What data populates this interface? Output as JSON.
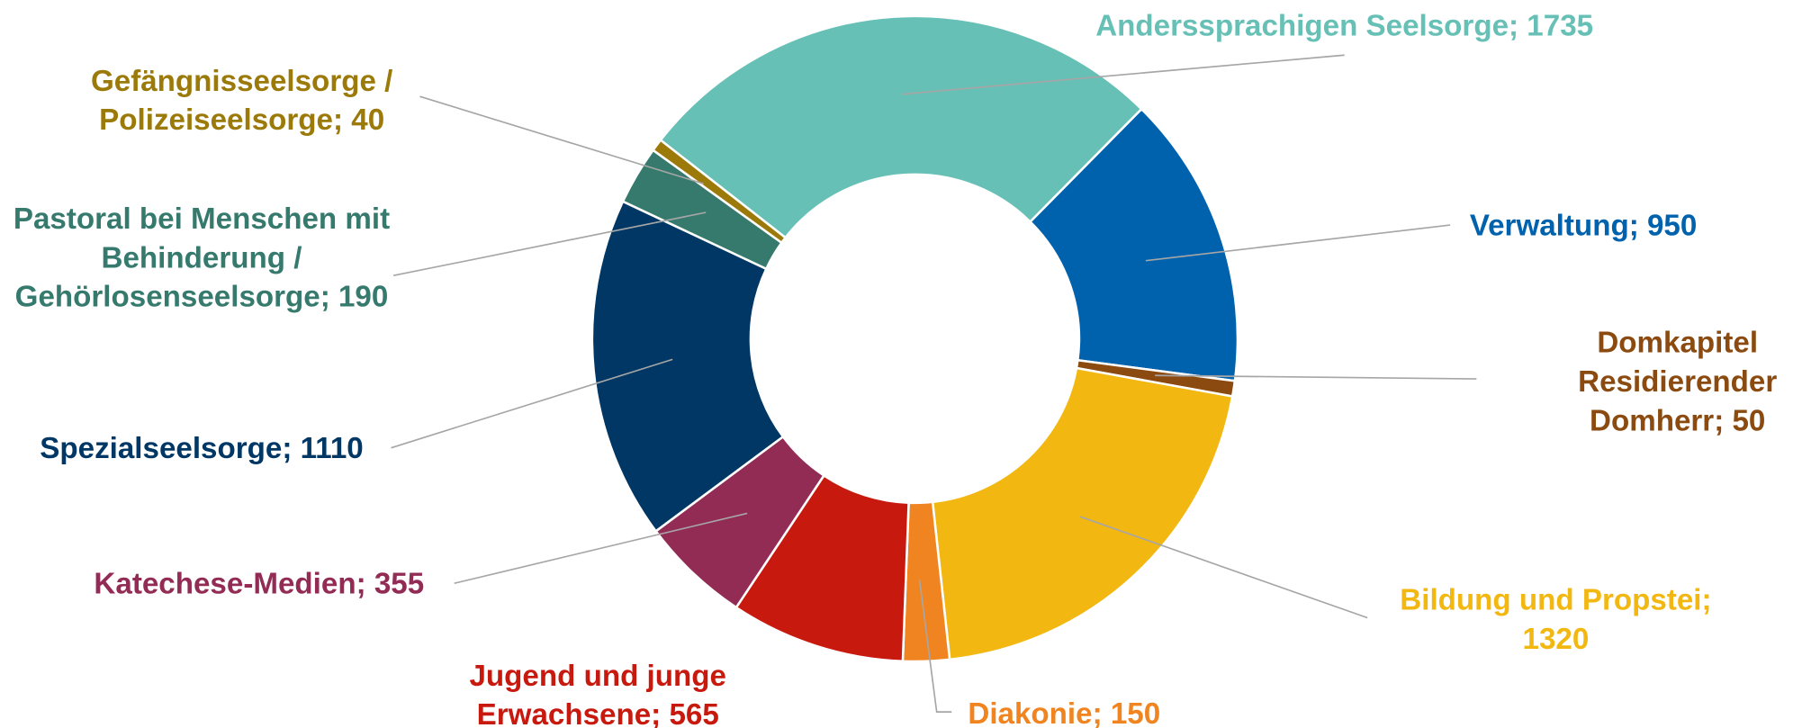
{
  "chart_data": {
    "type": "donut",
    "categories": [
      "Anderssprachigen Seelsorge",
      "Verwaltung",
      "Domkapitel Residierender Domherr",
      "Bildung und Propstei",
      "Diakonie",
      "Jugend und junge Erwachsene",
      "Katechese-Medien",
      "Spezialseelsorge",
      "Pastoral bei Menschen mit Behinderung / Gehörlosenseelsorge",
      "Gefängnisseelsorge / Polizeiseelsorge"
    ],
    "values": [
      1735,
      950,
      50,
      1320,
      150,
      565,
      355,
      1110,
      190,
      40
    ],
    "colors": [
      "#67c0b6",
      "#0062ad",
      "#8b4b10",
      "#f2b711",
      "#f08420",
      "#c8190f",
      "#922c55",
      "#003764",
      "#367a6e",
      "#9b7a0a"
    ],
    "label_separator": "; "
  }
}
